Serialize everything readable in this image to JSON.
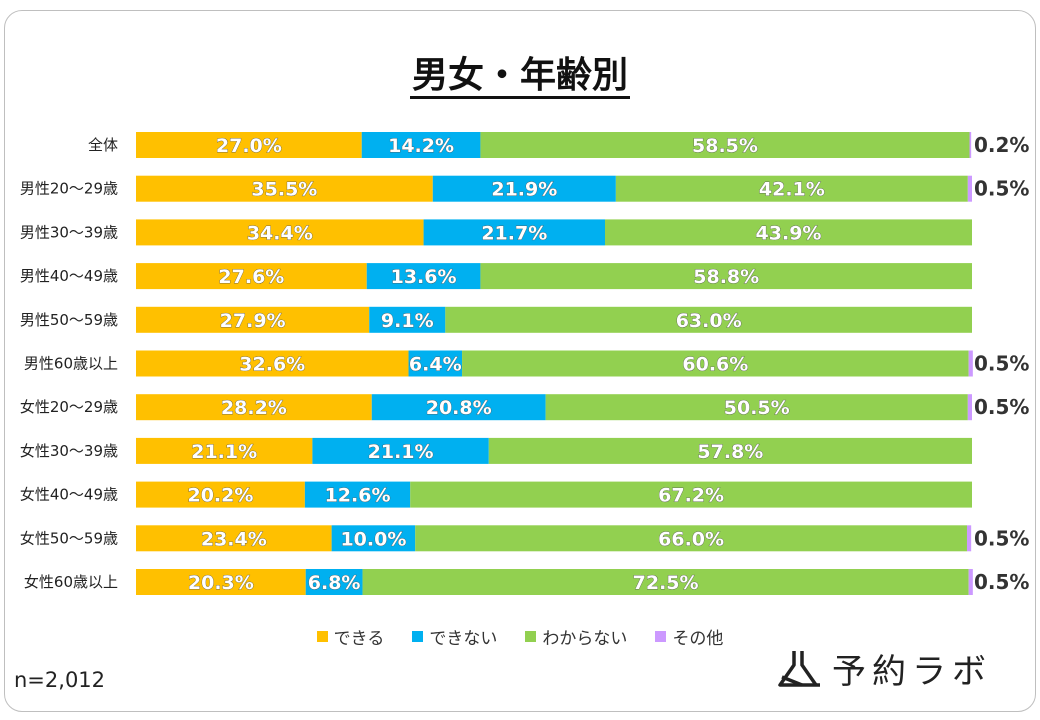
{
  "title": "男女・年齢別",
  "n_label": "n=2,012",
  "logo_text": "予約ラボ",
  "legend": [
    {
      "label": "できる",
      "color": "#FFC000"
    },
    {
      "label": "できない",
      "color": "#00B0F0"
    },
    {
      "label": "わからない",
      "color": "#92D050"
    },
    {
      "label": "その他",
      "color": "#CC99FF"
    }
  ],
  "chart_data": {
    "type": "bar",
    "orientation": "horizontal",
    "stacked": "100%",
    "title": "男女・年齢別",
    "categories": [
      "全体",
      "男性20～29歳",
      "男性30～39歳",
      "男性40～49歳",
      "男性50～59歳",
      "男性60歳以上",
      "女性20～29歳",
      "女性30～39歳",
      "女性40～49歳",
      "女性50～59歳",
      "女性60歳以上"
    ],
    "series": [
      {
        "name": "できる",
        "values": [
          27.0,
          35.5,
          34.4,
          27.6,
          27.9,
          32.6,
          28.2,
          21.1,
          20.2,
          23.4,
          20.3
        ],
        "labels": [
          "27.0%",
          "35.5%",
          "34.4%",
          "27.6%",
          "27.9%",
          "32.6%",
          "28.2%",
          "21.1%",
          "20.2%",
          "23.4%",
          "20.3%"
        ]
      },
      {
        "name": "できない",
        "values": [
          14.2,
          21.9,
          21.7,
          13.6,
          9.1,
          6.4,
          20.8,
          21.1,
          12.6,
          10.0,
          6.8
        ],
        "labels": [
          "14.2%",
          "21.9%",
          "21.7%",
          "13.6%",
          "9.1%",
          "6.4%",
          "20.8%",
          "21.1%",
          "12.6%",
          "10.0%",
          "6.8%"
        ]
      },
      {
        "name": "わからない",
        "values": [
          58.5,
          42.1,
          43.9,
          58.8,
          63.0,
          60.6,
          50.5,
          57.8,
          67.2,
          66.0,
          72.5
        ],
        "labels": [
          "58.5%",
          "42.1%",
          "43.9%",
          "58.8%",
          "63.0%",
          "60.6%",
          "50.5%",
          "57.8%",
          "67.2%",
          "66.0%",
          "72.5%"
        ]
      },
      {
        "name": "その他",
        "values": [
          0.2,
          0.5,
          0,
          0,
          0,
          0.5,
          0.5,
          0,
          0,
          0.5,
          0.5
        ],
        "labels": [
          "0.2%",
          "0.5%",
          "",
          "",
          "",
          "0.5%",
          "0.5%",
          "",
          "",
          "0.5%",
          "0.5%"
        ]
      }
    ]
  }
}
